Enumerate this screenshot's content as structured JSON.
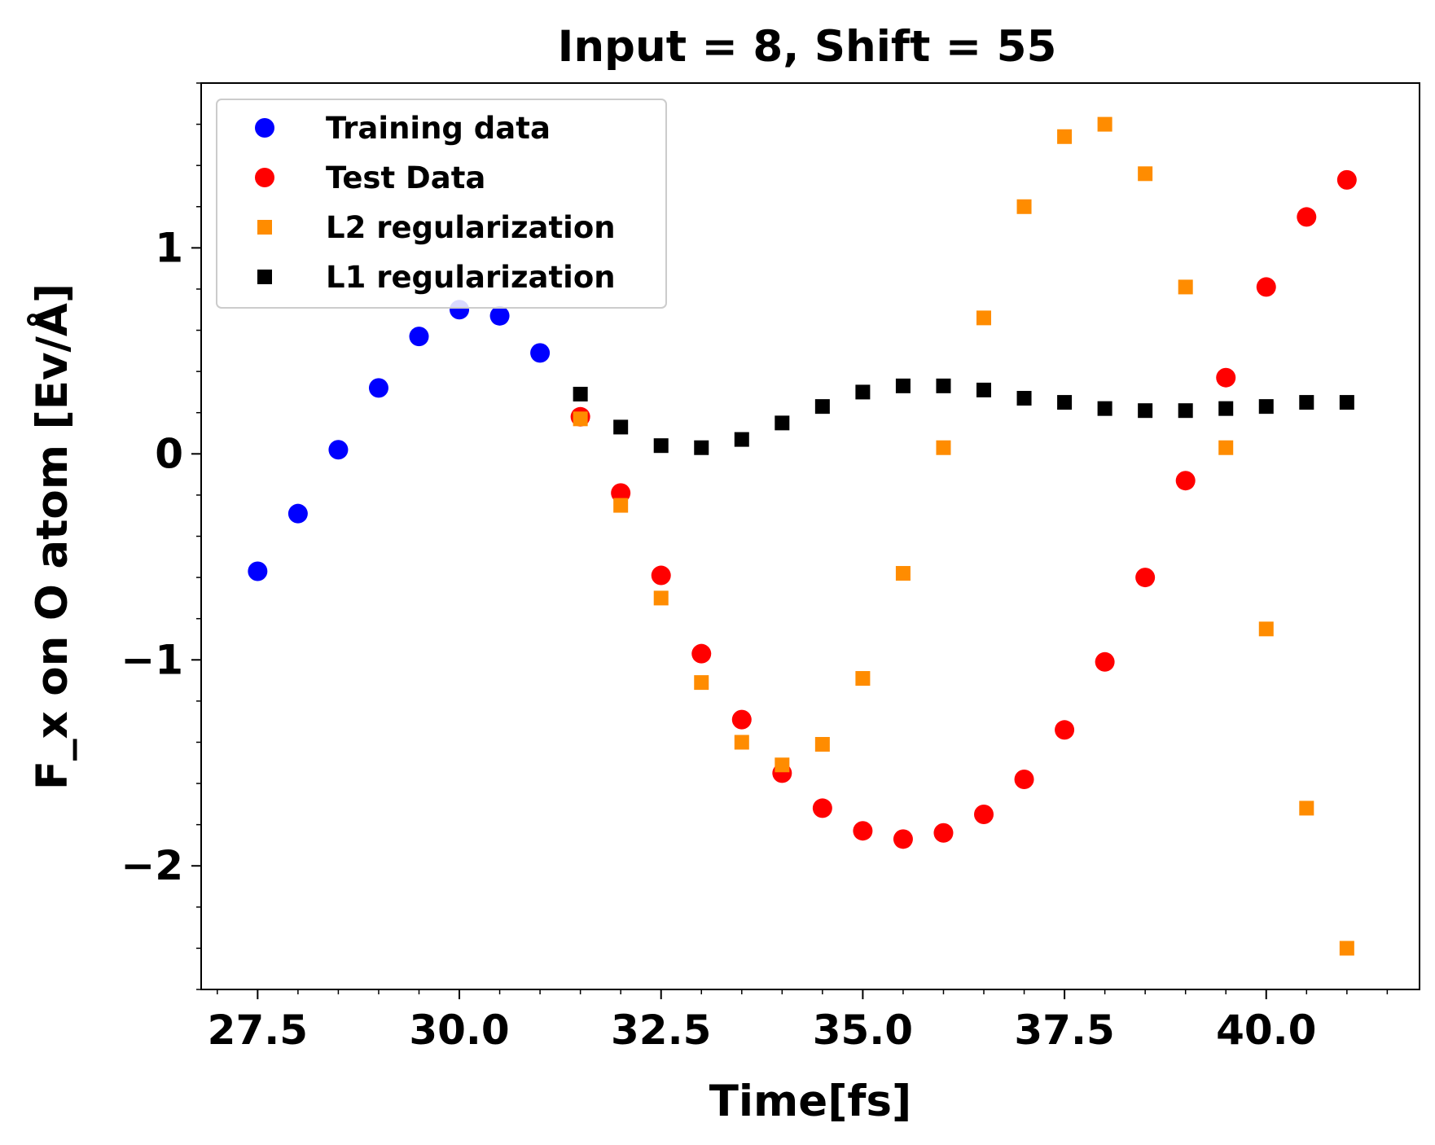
{
  "chart_data": {
    "type": "scatter",
    "title": "Input = 8, Shift = 55",
    "xlabel": "Time[fs]",
    "ylabel": "F_x on O atom [Ev/Å]",
    "xlim": [
      26.8,
      41.9
    ],
    "ylim": [
      -2.6,
      1.8
    ],
    "xticks": [
      27.5,
      30.0,
      32.5,
      35.0,
      37.5,
      40.0
    ],
    "xtick_labels": [
      "27.5",
      "30.0",
      "32.5",
      "35.0",
      "37.5",
      "40.0"
    ],
    "yticks": [
      1,
      0,
      -1,
      -2
    ],
    "ytick_labels": [
      "1",
      "0",
      "−1",
      "−2"
    ],
    "grid": false,
    "legend_position": "upper-left",
    "series": [
      {
        "name": "Training data",
        "marker": "circle",
        "color": "#0000ff",
        "points": [
          [
            27.5,
            -0.57
          ],
          [
            28.0,
            -0.29
          ],
          [
            28.5,
            0.02
          ],
          [
            29.0,
            0.32
          ],
          [
            29.5,
            0.57
          ],
          [
            30.0,
            0.7
          ],
          [
            30.5,
            0.67
          ],
          [
            31.0,
            0.49
          ]
        ]
      },
      {
        "name": "Test Data",
        "marker": "circle",
        "color": "#ff0000",
        "points": [
          [
            31.5,
            0.18
          ],
          [
            32.0,
            -0.19
          ],
          [
            32.5,
            -0.59
          ],
          [
            33.0,
            -0.97
          ],
          [
            33.5,
            -1.29
          ],
          [
            34.0,
            -1.55
          ],
          [
            34.5,
            -1.72
          ],
          [
            35.0,
            -1.83
          ],
          [
            35.5,
            -1.87
          ],
          [
            36.0,
            -1.84
          ],
          [
            36.5,
            -1.75
          ],
          [
            37.0,
            -1.58
          ],
          [
            37.5,
            -1.34
          ],
          [
            38.0,
            -1.01
          ],
          [
            38.5,
            -0.6
          ],
          [
            39.0,
            -0.13
          ],
          [
            39.5,
            0.37
          ],
          [
            40.0,
            0.81
          ],
          [
            40.5,
            1.15
          ],
          [
            41.0,
            1.33
          ]
        ]
      },
      {
        "name": "L2 regularization",
        "marker": "square",
        "color": "#ff8c00",
        "points": [
          [
            31.5,
            0.17
          ],
          [
            32.0,
            -0.25
          ],
          [
            32.5,
            -0.7
          ],
          [
            33.0,
            -1.11
          ],
          [
            33.5,
            -1.4
          ],
          [
            34.0,
            -1.51
          ],
          [
            34.5,
            -1.41
          ],
          [
            35.0,
            -1.09
          ],
          [
            35.5,
            -0.58
          ],
          [
            36.0,
            0.03
          ],
          [
            36.5,
            0.66
          ],
          [
            37.0,
            1.2
          ],
          [
            37.5,
            1.54
          ],
          [
            38.0,
            1.6
          ],
          [
            38.5,
            1.36
          ],
          [
            39.0,
            0.81
          ],
          [
            39.5,
            0.03
          ],
          [
            40.0,
            -0.85
          ],
          [
            40.5,
            -1.72
          ],
          [
            41.0,
            -2.4
          ]
        ]
      },
      {
        "name": "L1 regularization",
        "marker": "square",
        "color": "#000000",
        "points": [
          [
            31.5,
            0.29
          ],
          [
            32.0,
            0.13
          ],
          [
            32.5,
            0.04
          ],
          [
            33.0,
            0.03
          ],
          [
            33.5,
            0.07
          ],
          [
            34.0,
            0.15
          ],
          [
            34.5,
            0.23
          ],
          [
            35.0,
            0.3
          ],
          [
            35.5,
            0.33
          ],
          [
            36.0,
            0.33
          ],
          [
            36.5,
            0.31
          ],
          [
            37.0,
            0.27
          ],
          [
            37.5,
            0.25
          ],
          [
            38.0,
            0.22
          ],
          [
            38.5,
            0.21
          ],
          [
            39.0,
            0.21
          ],
          [
            39.5,
            0.22
          ],
          [
            40.0,
            0.23
          ],
          [
            40.5,
            0.25
          ],
          [
            41.0,
            0.25
          ]
        ]
      }
    ]
  }
}
